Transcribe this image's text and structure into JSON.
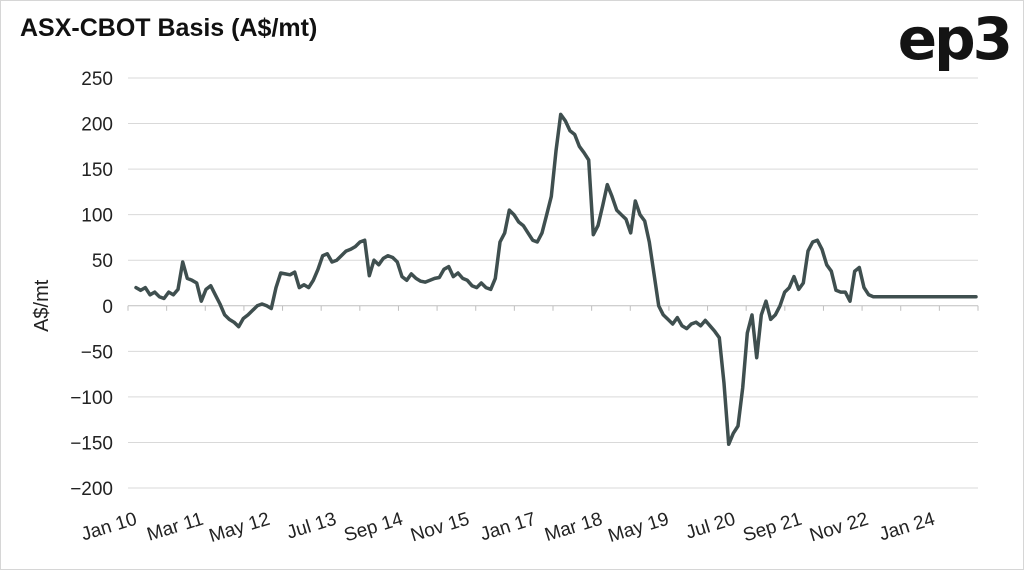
{
  "title": "ASX-CBOT Basis (A$/mt)",
  "logo": "ep3",
  "chart_data": {
    "type": "line",
    "title": "ASX-CBOT Basis (A$/mt)",
    "ylabel": "A$/mt",
    "xlabel": "",
    "ylim": [
      -200,
      250
    ],
    "yticks": [
      250,
      200,
      150,
      100,
      50,
      0,
      -50,
      -100,
      -150,
      -200
    ],
    "ytick_labels": [
      "250",
      "200",
      "150",
      "100",
      "50",
      "0",
      "−50",
      "−100",
      "−150",
      "−200"
    ],
    "xtick_labels": [
      "Jan 10",
      "Mar 11",
      "May 12",
      "Jul 13",
      "Sep 14",
      "Nov 15",
      "Jan 17",
      "Mar 18",
      "May 19",
      "Jul 20",
      "Sep 21",
      "Nov 22",
      "Jan 24"
    ],
    "grid": true,
    "legend": "none",
    "colors": {
      "line": "#3f4f4f",
      "grid": "#d9d9d9",
      "axis": "#bfbfbf"
    },
    "series": [
      {
        "x": [
          0,
          1,
          2,
          3,
          4,
          5,
          6,
          7,
          8,
          9,
          10,
          11,
          12,
          13,
          14,
          15,
          16,
          17,
          18,
          19,
          20,
          21,
          22,
          23,
          24,
          25,
          26,
          27,
          28,
          29,
          30,
          31,
          32,
          33,
          34,
          35,
          36,
          37,
          38,
          39,
          40,
          41,
          42,
          43,
          44,
          45,
          46,
          47,
          48,
          49,
          50,
          51,
          52,
          53,
          54,
          55,
          56,
          57,
          58,
          59,
          60,
          61,
          62,
          63,
          64,
          65,
          66,
          67,
          68,
          69,
          70,
          71,
          72,
          73,
          74,
          75,
          76,
          77,
          78,
          79,
          80,
          81,
          82,
          83,
          84,
          85,
          86,
          87,
          88,
          89,
          90,
          91,
          92,
          93,
          94,
          95,
          96,
          97,
          98,
          99,
          100,
          101,
          102,
          103,
          104,
          105,
          106,
          107,
          108,
          109,
          110,
          111,
          112,
          113,
          114,
          115,
          116,
          117,
          118,
          119,
          120,
          121,
          122,
          123,
          124,
          125,
          126,
          127,
          128,
          129,
          130,
          131,
          132,
          133,
          134,
          135,
          136,
          137,
          138,
          139,
          140,
          141,
          142,
          143,
          144,
          145,
          146,
          147,
          148,
          149,
          150,
          151,
          152,
          153,
          154,
          155,
          156,
          157,
          158,
          159,
          160,
          161,
          162,
          163,
          164,
          165,
          166,
          167,
          168,
          169,
          170,
          171,
          172,
          173,
          174,
          175,
          176,
          177,
          178,
          179,
          180
        ],
        "y": [
          20,
          17,
          20,
          12,
          15,
          10,
          8,
          15,
          12,
          18,
          48,
          30,
          28,
          25,
          5,
          18,
          22,
          12,
          2,
          -10,
          -15,
          -18,
          -23,
          -14,
          -10,
          -5,
          0,
          2,
          0,
          -3,
          20,
          36,
          35,
          34,
          37,
          20,
          23,
          20,
          28,
          40,
          55,
          57,
          48,
          50,
          55,
          60,
          62,
          65,
          70,
          72,
          33,
          50,
          45,
          52,
          55,
          53,
          48,
          32,
          28,
          35,
          30,
          27,
          26,
          28,
          30,
          31,
          40,
          43,
          32,
          36,
          30,
          28,
          22,
          20,
          25,
          20,
          18,
          30,
          70,
          80,
          105,
          100,
          92,
          88,
          80,
          72,
          70,
          80,
          100,
          120,
          170,
          210,
          203,
          192,
          188,
          175,
          168,
          160,
          78,
          88,
          110,
          133,
          120,
          105,
          100,
          95,
          80,
          115,
          100,
          93,
          70,
          35,
          0,
          -10,
          -15,
          -20,
          -13,
          -22,
          -25,
          -20,
          -18,
          -22,
          -16,
          -22,
          -28,
          -35,
          -85,
          -152,
          -140,
          -132,
          -90,
          -30,
          -10,
          -57,
          -10,
          5,
          -15,
          -10,
          0,
          15,
          20,
          32,
          18,
          25,
          60,
          70,
          72,
          62,
          45,
          38,
          17,
          15,
          15,
          5,
          38,
          42,
          20,
          12,
          10,
          10,
          10,
          10,
          10,
          10,
          10,
          10,
          10,
          10,
          10,
          10,
          10,
          10,
          10,
          10,
          10,
          10,
          10,
          10,
          10,
          10,
          10
        ]
      }
    ]
  }
}
